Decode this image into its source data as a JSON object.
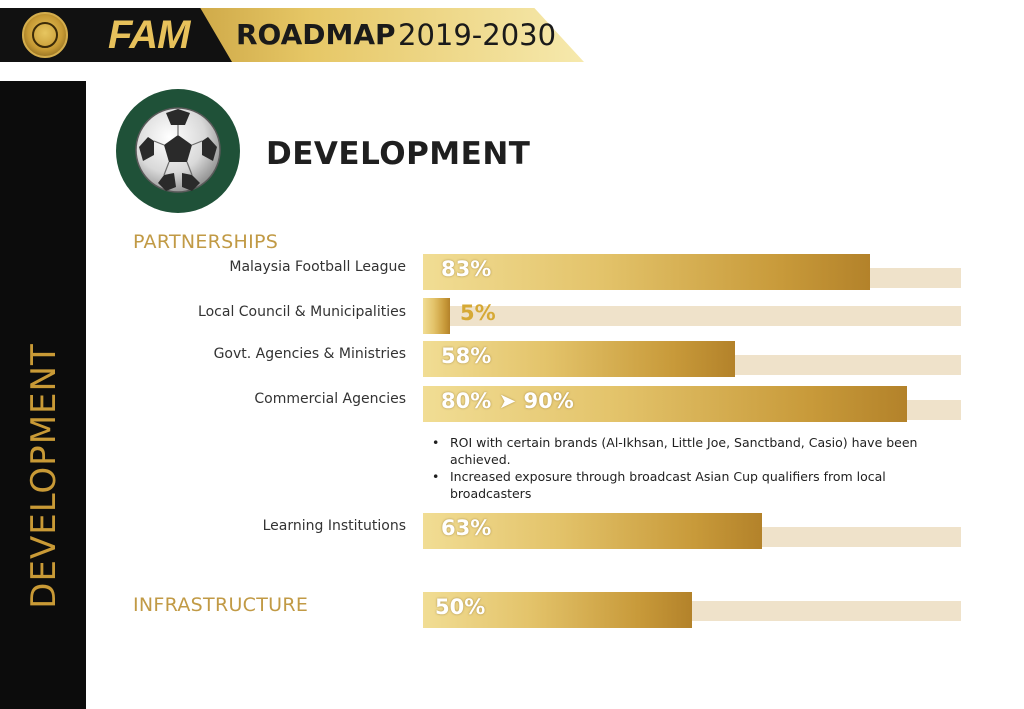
{
  "header": {
    "brand": "FAM",
    "title_bold": "ROADMAP",
    "title_years": "2019-2030"
  },
  "sidebar": {
    "label": "DEVELOPMENT"
  },
  "page": {
    "title": "DEVELOPMENT"
  },
  "sections": {
    "partnerships": "PARTNERSHIPS",
    "infrastructure": "INFRASTRUCTURE"
  },
  "colors": {
    "gold": "#c99a36",
    "track": "#efe2ca",
    "ball_bg": "#1f5138"
  },
  "chart_data": {
    "type": "bar",
    "orientation": "horizontal",
    "xlim": [
      0,
      100
    ],
    "categories": [
      "Malaysia Football League",
      "Local Council & Municipalities",
      "Govt. Agencies & Ministries",
      "Commercial Agencies",
      "Learning Institutions",
      ""
    ],
    "values": [
      83,
      5,
      58,
      90,
      63,
      50
    ],
    "value_labels": [
      "83%",
      "5%",
      "58%",
      "80% ➤ 90%",
      "63%",
      "50%"
    ],
    "annotations": [
      "ROI with certain brands (Al-Ikhsan, Little Joe, Sanctband, Casio) have been achieved.",
      "Increased exposure through broadcast Asian Cup qualifiers from local broadcasters"
    ]
  }
}
